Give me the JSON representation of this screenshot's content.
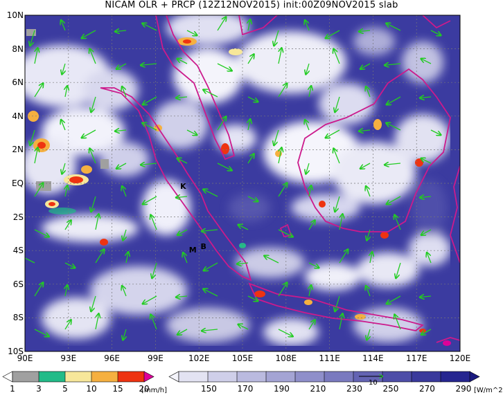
{
  "title": "NICAM OLR + PRCP (12Z12NOV2015) init:00Z09NOV2015 slab",
  "map": {
    "lon_min": 90,
    "lon_max": 120,
    "lat_min": -10,
    "lat_max": 10,
    "lat_ticks": [
      "10N",
      "8N",
      "6N",
      "4N",
      "2N",
      "EQ",
      "2S",
      "4S",
      "6S",
      "8S",
      "10S"
    ],
    "lon_ticks": [
      "90E",
      "93E",
      "96E",
      "99E",
      "102E",
      "105E",
      "108E",
      "111E",
      "114E",
      "117E",
      "120E"
    ],
    "markers": [
      {
        "label": "K",
        "lon": 100.9,
        "lat": -0.2
      },
      {
        "label": "B",
        "lon": 102.3,
        "lat": -3.8
      },
      {
        "label": "M",
        "lon": 101.5,
        "lat": -4.0
      }
    ],
    "colors": {
      "coast": "#cc1a8c",
      "vector": "#22cc22",
      "grid": "#777777"
    }
  },
  "precip_colorbar": {
    "labels": [
      "1",
      "3",
      "5",
      "10",
      "15",
      "20"
    ],
    "unit": "[mm/h]",
    "colors": [
      "#a0a0a0",
      "#22bb88",
      "#f7e79a",
      "#f5b040",
      "#ee3311",
      "#dd0099"
    ]
  },
  "olr_colorbar": {
    "labels": [
      "150",
      "170",
      "190",
      "210",
      "230",
      "250",
      "270",
      "290"
    ],
    "unit": "[W/m^2]",
    "colors": [
      "#f4f4fb",
      "#e3e3f2",
      "#cfcfe9",
      "#babadf",
      "#a4a4d4",
      "#8f8fca",
      "#7a7abf",
      "#6464b3",
      "#4e4ea8",
      "#3a3a9c",
      "#262690",
      "#1a1a80"
    ]
  },
  "vector_ref": {
    "label": "10"
  }
}
